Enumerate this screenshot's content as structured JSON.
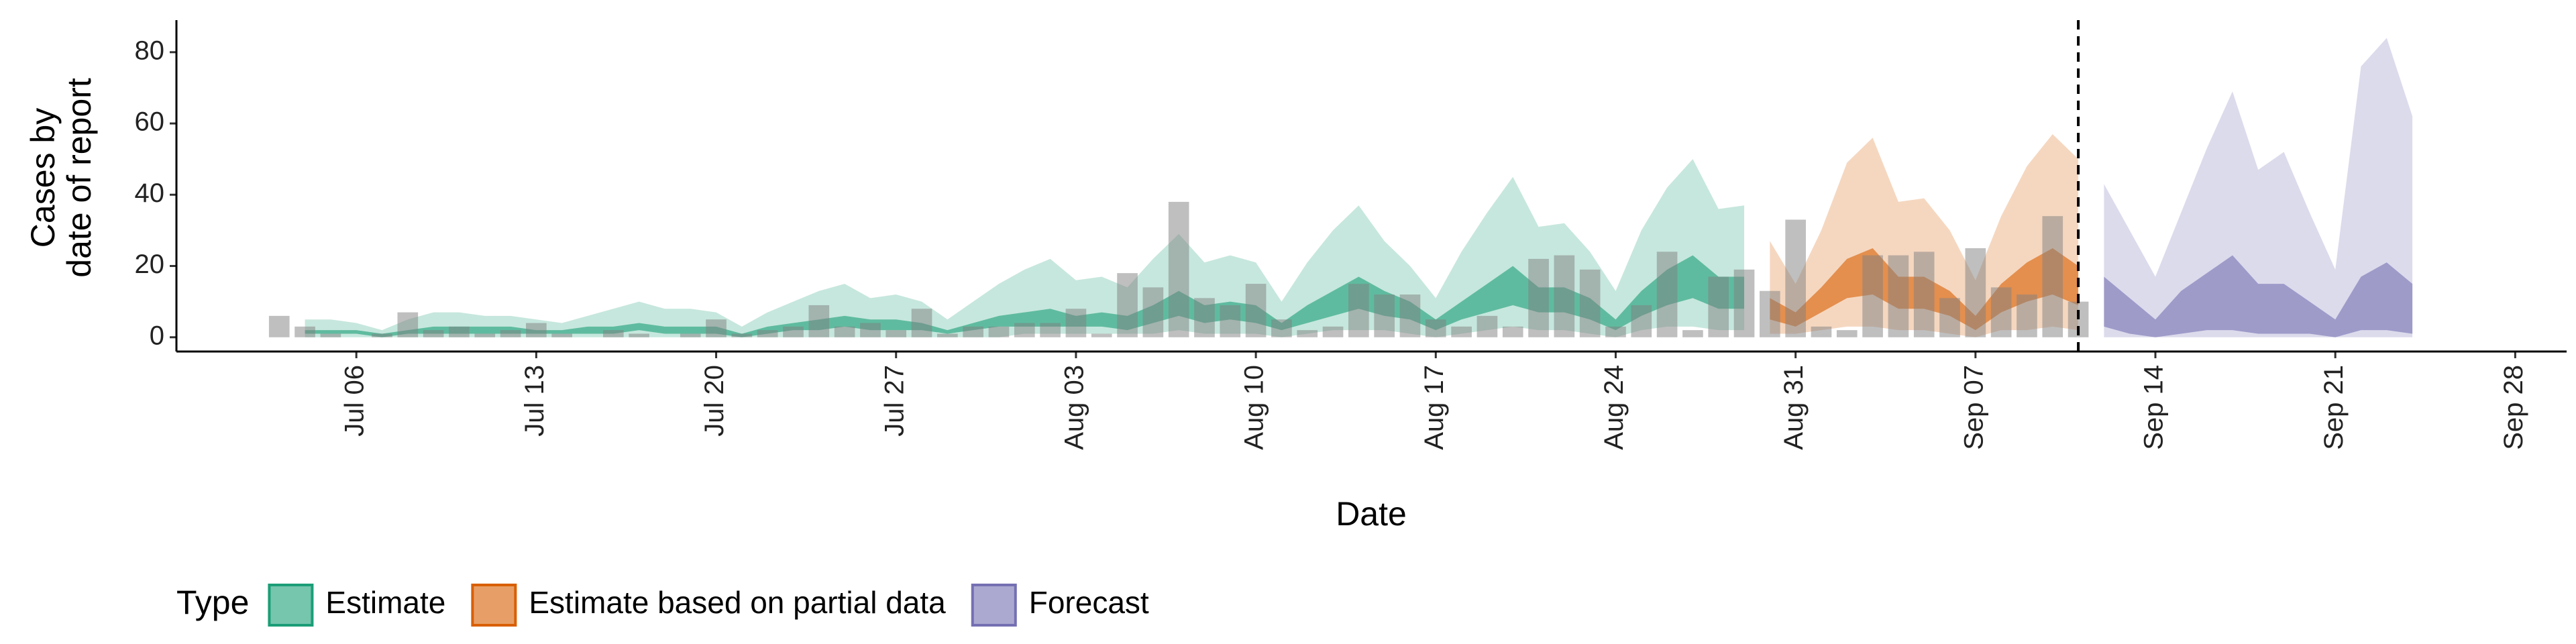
{
  "chart_data": {
    "type": "area",
    "ylabel": [
      "Cases by",
      "date of report"
    ],
    "xlabel": "Date",
    "legend_title": "Type",
    "xlim": [
      "Jun 29",
      "Sep 30"
    ],
    "xticks": [
      "Jul 06",
      "Jul 13",
      "Jul 20",
      "Jul 27",
      "Aug 03",
      "Aug 10",
      "Aug 17",
      "Aug 24",
      "Aug 31",
      "Sep 07",
      "Sep 14",
      "Sep 21",
      "Sep 28"
    ],
    "ylim": [
      -4,
      89
    ],
    "yticks": [
      0,
      20,
      40,
      60,
      80
    ],
    "vline": "Sep 11",
    "bars": {
      "color": "#808080",
      "x": [
        "Jul 03",
        "Jul 04",
        "Jul 05",
        "Jul 06",
        "Jul 07",
        "Jul 08",
        "Jul 09",
        "Jul 10",
        "Jul 11",
        "Jul 12",
        "Jul 13",
        "Jul 14",
        "Jul 15",
        "Jul 16",
        "Jul 17",
        "Jul 18",
        "Jul 19",
        "Jul 20",
        "Jul 21",
        "Jul 22",
        "Jul 23",
        "Jul 24",
        "Jul 25",
        "Jul 26",
        "Jul 27",
        "Jul 28",
        "Jul 29",
        "Jul 30",
        "Jul 31",
        "Aug 01",
        "Aug 02",
        "Aug 03",
        "Aug 04",
        "Aug 05",
        "Aug 06",
        "Aug 07",
        "Aug 08",
        "Aug 09",
        "Aug 10",
        "Aug 11",
        "Aug 12",
        "Aug 13",
        "Aug 14",
        "Aug 15",
        "Aug 16",
        "Aug 17",
        "Aug 18",
        "Aug 19",
        "Aug 20",
        "Aug 21",
        "Aug 22",
        "Aug 23",
        "Aug 24",
        "Aug 25",
        "Aug 26",
        "Aug 27",
        "Aug 28",
        "Aug 29",
        "Aug 30",
        "Aug 31",
        "Sep 01",
        "Sep 02",
        "Sep 03",
        "Sep 04",
        "Sep 05",
        "Sep 06",
        "Sep 07",
        "Sep 08",
        "Sep 09",
        "Sep 10",
        "Sep 11"
      ],
      "values": [
        6,
        3,
        1,
        0,
        1,
        7,
        2,
        3,
        1,
        2,
        4,
        1,
        0,
        2,
        1,
        0,
        1,
        5,
        1,
        2,
        3,
        9,
        3,
        4,
        2,
        8,
        1,
        3,
        3,
        4,
        4,
        8,
        1,
        18,
        14,
        38,
        11,
        9,
        15,
        5,
        2,
        3,
        15,
        12,
        12,
        5,
        3,
        6,
        3,
        22,
        23,
        19,
        3,
        9,
        24,
        2,
        17,
        19,
        13,
        33,
        3,
        2,
        23,
        23,
        24,
        11,
        25,
        14,
        12,
        34,
        10
      ]
    },
    "series": [
      {
        "name": "Estimate",
        "color": "#1b9e77",
        "x": [
          "Jul 04",
          "Jul 05",
          "Jul 06",
          "Jul 07",
          "Jul 08",
          "Jul 09",
          "Jul 10",
          "Jul 11",
          "Jul 12",
          "Jul 13",
          "Jul 14",
          "Jul 15",
          "Jul 16",
          "Jul 17",
          "Jul 18",
          "Jul 19",
          "Jul 20",
          "Jul 21",
          "Jul 22",
          "Jul 23",
          "Jul 24",
          "Jul 25",
          "Jul 26",
          "Jul 27",
          "Jul 28",
          "Jul 29",
          "Jul 30",
          "Jul 31",
          "Aug 01",
          "Aug 02",
          "Aug 03",
          "Aug 04",
          "Aug 05",
          "Aug 06",
          "Aug 07",
          "Aug 08",
          "Aug 09",
          "Aug 10",
          "Aug 11",
          "Aug 12",
          "Aug 13",
          "Aug 14",
          "Aug 15",
          "Aug 16",
          "Aug 17",
          "Aug 18",
          "Aug 19",
          "Aug 20",
          "Aug 21",
          "Aug 22",
          "Aug 23",
          "Aug 24",
          "Aug 25",
          "Aug 26",
          "Aug 27",
          "Aug 28",
          "Aug 29"
        ],
        "upper90": [
          5,
          5,
          4,
          2,
          5,
          7,
          7,
          6,
          6,
          5,
          4,
          6,
          8,
          10,
          8,
          8,
          7,
          3,
          7,
          10,
          13,
          15,
          11,
          12,
          10,
          5,
          10,
          15,
          19,
          22,
          16,
          17,
          14,
          22,
          29,
          21,
          23,
          21,
          10,
          21,
          30,
          37,
          27,
          20,
          11,
          24,
          35,
          45,
          31,
          32,
          24,
          13,
          30,
          42,
          50,
          36,
          37
        ],
        "lower90": [
          0,
          0,
          0,
          0,
          0,
          0,
          0,
          0,
          0,
          0,
          0,
          0,
          0,
          0,
          0,
          0,
          0,
          0,
          0,
          0,
          0,
          0,
          0,
          0,
          0,
          0,
          0,
          0,
          1,
          1,
          1,
          1,
          1,
          1,
          2,
          1,
          1,
          1,
          0,
          1,
          2,
          2,
          2,
          1,
          0,
          1,
          2,
          3,
          2,
          2,
          1,
          0,
          2,
          3,
          3,
          2,
          2
        ],
        "upper50": [
          2,
          2,
          2,
          1,
          2,
          3,
          3,
          3,
          3,
          2,
          2,
          3,
          3,
          4,
          3,
          3,
          3,
          1,
          3,
          4,
          5,
          6,
          5,
          5,
          4,
          2,
          4,
          6,
          7,
          8,
          6,
          7,
          6,
          9,
          13,
          9,
          10,
          9,
          4,
          9,
          13,
          17,
          13,
          10,
          5,
          10,
          15,
          20,
          14,
          14,
          11,
          5,
          13,
          19,
          23,
          17,
          17
        ],
        "lower50": [
          1,
          1,
          1,
          0,
          1,
          1,
          1,
          1,
          1,
          1,
          1,
          1,
          1,
          2,
          1,
          1,
          1,
          0,
          1,
          2,
          2,
          3,
          2,
          2,
          2,
          1,
          2,
          3,
          3,
          3,
          3,
          3,
          2,
          4,
          6,
          4,
          5,
          4,
          2,
          4,
          6,
          8,
          6,
          5,
          2,
          5,
          7,
          9,
          7,
          7,
          5,
          2,
          6,
          9,
          11,
          8,
          8
        ]
      },
      {
        "name": "Estimate based on partial data",
        "color": "#d95f02",
        "x": [
          "Aug 30",
          "Aug 31",
          "Sep 01",
          "Sep 02",
          "Sep 03",
          "Sep 04",
          "Sep 05",
          "Sep 06",
          "Sep 07",
          "Sep 08",
          "Sep 09",
          "Sep 10",
          "Sep 11"
        ],
        "upper90": [
          27,
          15,
          30,
          49,
          56,
          38,
          39,
          30,
          16,
          34,
          48,
          57,
          50
        ],
        "lower90": [
          1,
          1,
          2,
          3,
          3,
          2,
          2,
          1,
          0,
          2,
          2,
          3,
          2
        ],
        "upper50": [
          11,
          7,
          14,
          22,
          25,
          17,
          17,
          13,
          6,
          15,
          21,
          25,
          20
        ],
        "lower50": [
          5,
          3,
          7,
          11,
          12,
          8,
          8,
          6,
          2,
          7,
          10,
          12,
          9
        ]
      },
      {
        "name": "Forecast",
        "color": "#7570b3",
        "x": [
          "Sep 12",
          "Sep 13",
          "Sep 14",
          "Sep 15",
          "Sep 16",
          "Sep 17",
          "Sep 18",
          "Sep 19",
          "Sep 20",
          "Sep 21",
          "Sep 22",
          "Sep 23",
          "Sep 24"
        ],
        "upper90": [
          43,
          30,
          17,
          35,
          53,
          69,
          47,
          52,
          35,
          19,
          76,
          84,
          62
        ],
        "lower90": [
          0,
          0,
          0,
          0,
          0,
          0,
          0,
          0,
          0,
          0,
          0,
          0,
          0
        ],
        "upper50": [
          17,
          11,
          5,
          13,
          18,
          23,
          15,
          15,
          10,
          5,
          17,
          21,
          15
        ],
        "lower50": [
          3,
          1,
          0,
          1,
          2,
          2,
          1,
          1,
          1,
          0,
          2,
          2,
          1
        ]
      }
    ]
  }
}
